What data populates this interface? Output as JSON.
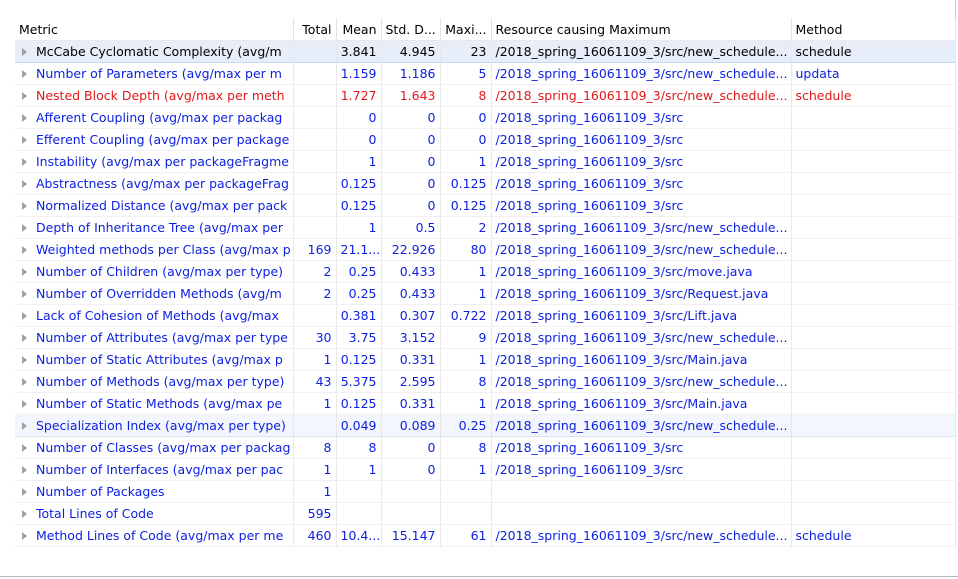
{
  "columns": [
    "Metric",
    "Total",
    "Mean",
    "Std. D...",
    "Maxi...",
    "Resource causing Maximum",
    "Method"
  ],
  "rows": [
    {
      "metric": "McCabe Cyclomatic Complexity (avg/m",
      "total": "",
      "mean": "3.841",
      "std": "4.945",
      "max": "23",
      "resource": "/2018_spring_16061109_3/src/new_schedule...",
      "method": "schedule",
      "style": "black",
      "state": "selected"
    },
    {
      "metric": "Number of Parameters (avg/max per m",
      "total": "",
      "mean": "1.159",
      "std": "1.186",
      "max": "5",
      "resource": "/2018_spring_16061109_3/src/new_schedule...",
      "method": "updata",
      "style": "blue",
      "state": ""
    },
    {
      "metric": "Nested Block Depth (avg/max per meth",
      "total": "",
      "mean": "1.727",
      "std": "1.643",
      "max": "8",
      "resource": "/2018_spring_16061109_3/src/new_schedule...",
      "method": "schedule",
      "style": "red",
      "state": ""
    },
    {
      "metric": "Afferent Coupling (avg/max per packag",
      "total": "",
      "mean": "0",
      "std": "0",
      "max": "0",
      "resource": "/2018_spring_16061109_3/src",
      "method": "",
      "style": "blue",
      "state": ""
    },
    {
      "metric": "Efferent Coupling (avg/max per package",
      "total": "",
      "mean": "0",
      "std": "0",
      "max": "0",
      "resource": "/2018_spring_16061109_3/src",
      "method": "",
      "style": "blue",
      "state": ""
    },
    {
      "metric": "Instability (avg/max per packageFragme",
      "total": "",
      "mean": "1",
      "std": "0",
      "max": "1",
      "resource": "/2018_spring_16061109_3/src",
      "method": "",
      "style": "blue",
      "state": ""
    },
    {
      "metric": "Abstractness (avg/max per packageFrag",
      "total": "",
      "mean": "0.125",
      "std": "0",
      "max": "0.125",
      "resource": "/2018_spring_16061109_3/src",
      "method": "",
      "style": "blue",
      "state": ""
    },
    {
      "metric": "Normalized Distance (avg/max per pack",
      "total": "",
      "mean": "0.125",
      "std": "0",
      "max": "0.125",
      "resource": "/2018_spring_16061109_3/src",
      "method": "",
      "style": "blue",
      "state": ""
    },
    {
      "metric": "Depth of Inheritance Tree (avg/max per",
      "total": "",
      "mean": "1",
      "std": "0.5",
      "max": "2",
      "resource": "/2018_spring_16061109_3/src/new_schedule...",
      "method": "",
      "style": "blue",
      "state": ""
    },
    {
      "metric": "Weighted methods per Class (avg/max p",
      "total": "169",
      "mean": "21.1...",
      "std": "22.926",
      "max": "80",
      "resource": "/2018_spring_16061109_3/src/new_schedule...",
      "method": "",
      "style": "blue",
      "state": ""
    },
    {
      "metric": "Number of Children (avg/max per type)",
      "total": "2",
      "mean": "0.25",
      "std": "0.433",
      "max": "1",
      "resource": "/2018_spring_16061109_3/src/move.java",
      "method": "",
      "style": "blue",
      "state": ""
    },
    {
      "metric": "Number of Overridden Methods (avg/m",
      "total": "2",
      "mean": "0.25",
      "std": "0.433",
      "max": "1",
      "resource": "/2018_spring_16061109_3/src/Request.java",
      "method": "",
      "style": "blue",
      "state": ""
    },
    {
      "metric": "Lack of Cohesion of Methods (avg/max",
      "total": "",
      "mean": "0.381",
      "std": "0.307",
      "max": "0.722",
      "resource": "/2018_spring_16061109_3/src/Lift.java",
      "method": "",
      "style": "blue",
      "state": ""
    },
    {
      "metric": "Number of Attributes (avg/max per type",
      "total": "30",
      "mean": "3.75",
      "std": "3.152",
      "max": "9",
      "resource": "/2018_spring_16061109_3/src/new_schedule...",
      "method": "",
      "style": "blue",
      "state": ""
    },
    {
      "metric": "Number of Static Attributes (avg/max p",
      "total": "1",
      "mean": "0.125",
      "std": "0.331",
      "max": "1",
      "resource": "/2018_spring_16061109_3/src/Main.java",
      "method": "",
      "style": "blue",
      "state": ""
    },
    {
      "metric": "Number of Methods (avg/max per type)",
      "total": "43",
      "mean": "5.375",
      "std": "2.595",
      "max": "8",
      "resource": "/2018_spring_16061109_3/src/new_schedule...",
      "method": "",
      "style": "blue",
      "state": ""
    },
    {
      "metric": "Number of Static Methods (avg/max pe",
      "total": "1",
      "mean": "0.125",
      "std": "0.331",
      "max": "1",
      "resource": "/2018_spring_16061109_3/src/Main.java",
      "method": "",
      "style": "blue",
      "state": ""
    },
    {
      "metric": "Specialization Index (avg/max per type)",
      "total": "",
      "mean": "0.049",
      "std": "0.089",
      "max": "0.25",
      "resource": "/2018_spring_16061109_3/src/new_schedule...",
      "method": "",
      "style": "blue",
      "state": "hover"
    },
    {
      "metric": "Number of Classes (avg/max per packag",
      "total": "8",
      "mean": "8",
      "std": "0",
      "max": "8",
      "resource": "/2018_spring_16061109_3/src",
      "method": "",
      "style": "blue",
      "state": ""
    },
    {
      "metric": "Number of Interfaces (avg/max per pac",
      "total": "1",
      "mean": "1",
      "std": "0",
      "max": "1",
      "resource": "/2018_spring_16061109_3/src",
      "method": "",
      "style": "blue",
      "state": ""
    },
    {
      "metric": "Number of Packages",
      "total": "1",
      "mean": "",
      "std": "",
      "max": "",
      "resource": "",
      "method": "",
      "style": "blue",
      "state": ""
    },
    {
      "metric": "Total Lines of Code",
      "total": "595",
      "mean": "",
      "std": "",
      "max": "",
      "resource": "",
      "method": "",
      "style": "blue",
      "state": ""
    },
    {
      "metric": "Method Lines of Code (avg/max per me",
      "total": "460",
      "mean": "10.4...",
      "std": "15.147",
      "max": "61",
      "resource": "/2018_spring_16061109_3/src/new_schedule...",
      "method": "schedule",
      "style": "blue",
      "state": ""
    }
  ],
  "colors": {
    "blue_text": "#0b1fe0",
    "red_text": "#e0191b",
    "selected_bg": "#e7eef9"
  },
  "icons": {
    "expand": "chevron-right-icon"
  }
}
